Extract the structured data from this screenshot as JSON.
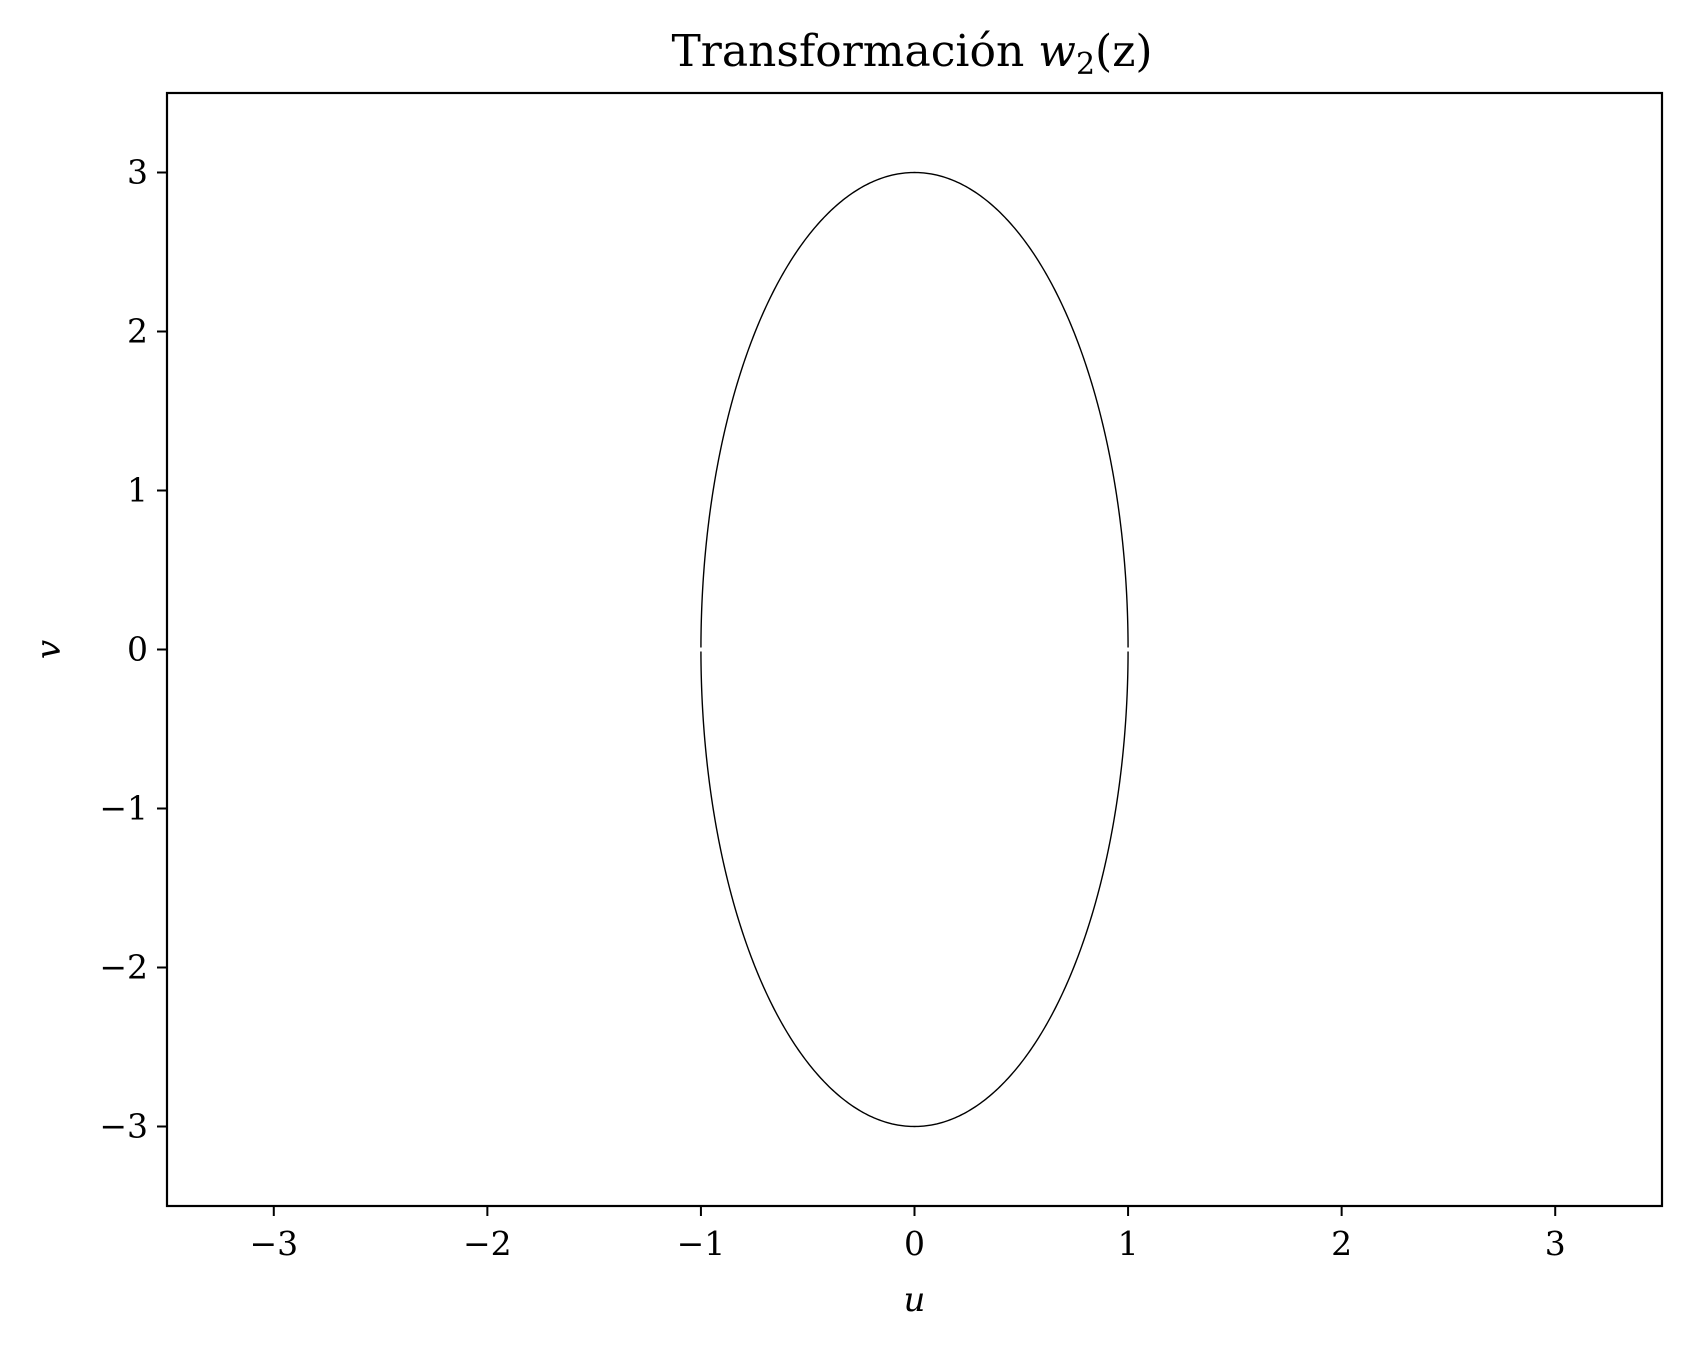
{
  "chart_data": {
    "type": "line",
    "title": {
      "prefix": "Transformación ",
      "symbol": "w",
      "subscript": "2",
      "suffix": "(z)"
    },
    "xlabel": "u",
    "ylabel": "v",
    "xlim": [
      -3.5,
      3.5
    ],
    "ylim": [
      -3.5,
      3.5
    ],
    "xticks": [
      -3,
      -2,
      -1,
      0,
      1,
      2,
      3
    ],
    "yticks": [
      -3,
      -2,
      -1,
      0,
      1,
      2,
      3
    ],
    "xtick_labels": [
      "−3",
      "−2",
      "−1",
      "0",
      "1",
      "2",
      "3"
    ],
    "ytick_labels": [
      "−3",
      "−2",
      "−1",
      "0",
      "1",
      "2",
      "3"
    ],
    "grid": false,
    "legend": "none",
    "line_color": "#000000",
    "series": [
      {
        "shape": "ellipse",
        "center": [
          0,
          0
        ],
        "semi_axis_u": 1,
        "semi_axis_v": 3,
        "x": [
          1,
          0.866,
          0.5,
          0,
          -0.5,
          -0.866,
          -1,
          -0.866,
          -0.5,
          0,
          0.5,
          0.866,
          1
        ],
        "y": [
          0,
          1.5,
          2.598,
          3,
          2.598,
          1.5,
          0,
          -1.5,
          -2.598,
          -3,
          -2.598,
          -1.5,
          0
        ],
        "gaps_at": [
          [
            1,
            0
          ],
          [
            -1,
            0
          ]
        ]
      }
    ]
  }
}
